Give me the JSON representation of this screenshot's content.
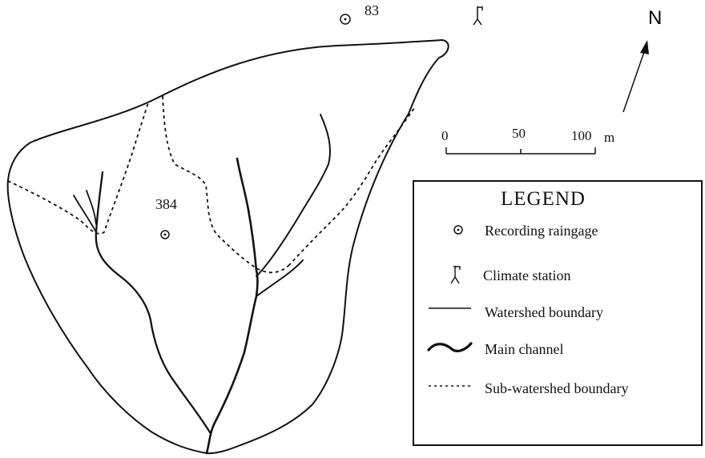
{
  "north_label": "N",
  "scale": {
    "ticks": [
      "0",
      "50",
      "100"
    ],
    "unit": "m"
  },
  "gauges": {
    "g1": "83",
    "g2": "384"
  },
  "legend": {
    "title": "LEGEND",
    "items": {
      "raingage": "Recording raingage",
      "climate": "Climate station",
      "boundary": "Watershed boundary",
      "channel": "Main channel",
      "subboundary": "Sub-watershed boundary"
    }
  }
}
